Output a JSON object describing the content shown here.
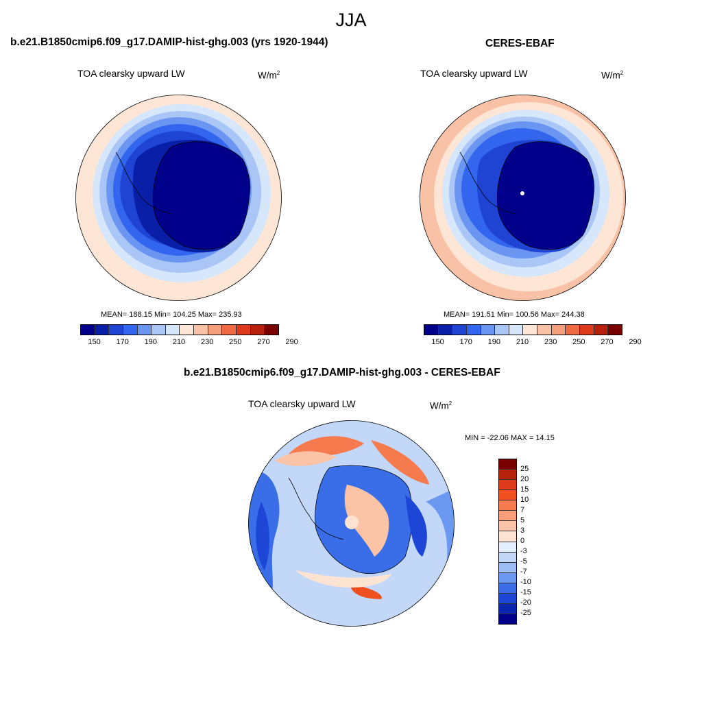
{
  "figure": {
    "title": "JJA"
  },
  "panels": [
    {
      "title": "b.e21.B1850cmip6.f09_g17.DAMIP-hist-ghg.003 (yrs 1920-1944)",
      "variable": "TOA clearsky upward LW",
      "units_base": "W/m",
      "units_exp": "2",
      "stats": "MEAN= 188.15  Min= 104.25  Max= 235.93"
    },
    {
      "title": "CERES-EBAF",
      "variable": "TOA clearsky upward LW",
      "units_base": "W/m",
      "units_exp": "2",
      "stats": "MEAN= 191.51  Min= 100.56  Max= 244.38"
    },
    {
      "title": "b.e21.B1850cmip6.f09_g17.DAMIP-hist-ghg.003 - CERES-EBAF",
      "variable": "TOA clearsky upward LW",
      "units_base": "W/m",
      "units_exp": "2",
      "stats": "MIN = -22.06 MAX =  14.15"
    }
  ],
  "colorbar_abs": {
    "ticks": [
      "150",
      "170",
      "190",
      "210",
      "230",
      "250",
      "270",
      "290"
    ],
    "colors": [
      "#00008b",
      "#0a1fa8",
      "#1f44d4",
      "#3366ee",
      "#6a96f2",
      "#a9c6f7",
      "#d6e6fb",
      "#fde6d6",
      "#f9c2a6",
      "#f59f7c",
      "#f06a44",
      "#dd3a1c",
      "#b8200e",
      "#7a0000"
    ]
  },
  "colorbar_diff": {
    "ticks": [
      "25",
      "20",
      "15",
      "10",
      "7",
      "5",
      "3",
      "0",
      "-3",
      "-5",
      "-7",
      "-10",
      "-15",
      "-20",
      "-25"
    ],
    "colors": [
      "#7a0000",
      "#b8200e",
      "#dd3a1c",
      "#f0501f",
      "#f57a4e",
      "#f9a07a",
      "#fbc4a6",
      "#fde3d2",
      "#e3eefc",
      "#c3d8f8",
      "#9dbdf5",
      "#6b98f0",
      "#3a6ee8",
      "#1d46d6",
      "#0a25b0",
      "#00008b"
    ]
  }
}
